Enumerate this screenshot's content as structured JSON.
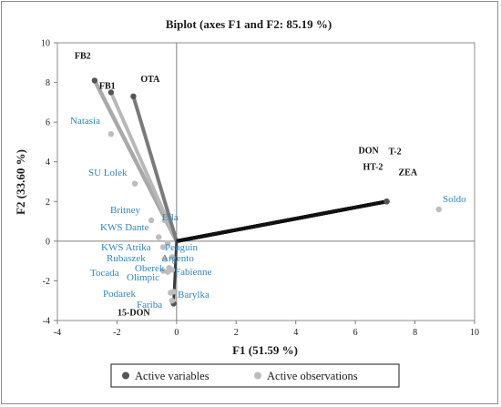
{
  "chart_data": {
    "type": "biplot",
    "title": "Biplot (axes F1 and F2: 85.19 %)",
    "xlabel": "F1 (51.59 %)",
    "ylabel": "F2 (33.60 %)",
    "xlim": [
      -4,
      10
    ],
    "ylim": [
      -4,
      10
    ],
    "xticks": [
      "-4",
      "-2",
      "0",
      "2",
      "4",
      "6",
      "8",
      "10"
    ],
    "yticks": [
      "-4",
      "-2",
      "0",
      "2",
      "4",
      "6",
      "8",
      "10"
    ],
    "legend": {
      "placement": "bottom",
      "items": [
        {
          "name": "Active variables",
          "color": "#555555"
        },
        {
          "name": "Active observations",
          "color": "#bdbdbd"
        }
      ]
    },
    "variables": [
      {
        "label": "FB2",
        "x": -2.75,
        "y": 8.1
      },
      {
        "label": "FB1",
        "x": -2.2,
        "y": 7.5
      },
      {
        "label": "OTA",
        "x": -1.45,
        "y": 7.3
      },
      {
        "label": "DON",
        "x": 7.05,
        "y": 2.0
      },
      {
        "label": "T-2",
        "x": 7.05,
        "y": 2.0
      },
      {
        "label": "HT-2",
        "x": 7.05,
        "y": 2.0
      },
      {
        "label": "ZEA",
        "x": 7.05,
        "y": 2.0
      },
      {
        "label": "15-DON",
        "x": -0.1,
        "y": -3.15
      }
    ],
    "observations": [
      {
        "label": "Soldo",
        "x": 8.8,
        "y": 1.6
      },
      {
        "label": "Natasia",
        "x": -2.2,
        "y": 5.4
      },
      {
        "label": "SU Lolek",
        "x": -1.4,
        "y": 2.9
      },
      {
        "label": "Britney",
        "x": -0.85,
        "y": 1.05
      },
      {
        "label": "Ella",
        "x": -0.4,
        "y": 1.05
      },
      {
        "label": "KWS Dante",
        "x": -0.6,
        "y": 0.2
      },
      {
        "label": "KWS Atrika",
        "x": -0.45,
        "y": -0.3
      },
      {
        "label": "Penguin",
        "x": -0.3,
        "y": -0.1
      },
      {
        "label": "Argento",
        "x": -0.15,
        "y": -0.8
      },
      {
        "label": "Rubaszek",
        "x": -0.4,
        "y": -0.9
      },
      {
        "label": "Oberek",
        "x": -0.25,
        "y": -1.35
      },
      {
        "label": "Fabienne",
        "x": -0.15,
        "y": -1.45
      },
      {
        "label": "Tocada",
        "x": -0.45,
        "y": -1.5
      },
      {
        "label": "Olimpic",
        "x": -0.3,
        "y": -1.55
      },
      {
        "label": "Podarek",
        "x": -0.2,
        "y": -2.6
      },
      {
        "label": "Barylka",
        "x": -0.1,
        "y": -2.55
      },
      {
        "label": "Fariba",
        "x": -0.15,
        "y": -3.0
      }
    ]
  }
}
